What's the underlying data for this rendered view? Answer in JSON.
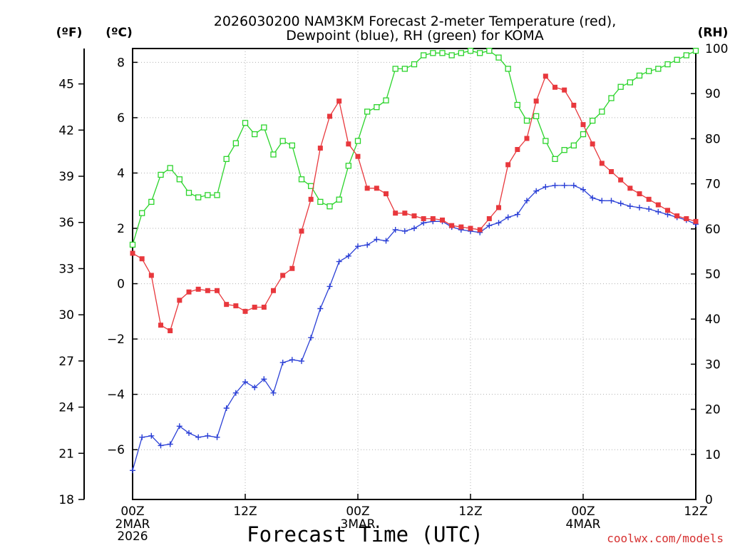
{
  "title": {
    "line1": "2026030200 NAM3KM Forecast 2-meter Temperature (red),",
    "line2": "Dewpoint (blue), RH (green) for KOMA"
  },
  "units": {
    "fahrenheit": "(ºF)",
    "celsius": "(ºC)",
    "rh": "(RH)"
  },
  "x_axis": {
    "label": "Forecast Time (UTC)",
    "ticks": [
      {
        "hour": 0,
        "label": "00Z"
      },
      {
        "hour": 12,
        "label": "12Z"
      },
      {
        "hour": 24,
        "label": "00Z"
      },
      {
        "hour": 36,
        "label": "12Z"
      },
      {
        "hour": 48,
        "label": "00Z"
      },
      {
        "hour": 60,
        "label": "12Z"
      }
    ],
    "date_labels": [
      {
        "hour": 0,
        "lines": [
          "2MAR",
          "2026"
        ]
      },
      {
        "hour": 24,
        "lines": [
          "3MAR"
        ]
      },
      {
        "hour": 48,
        "lines": [
          "4MAR"
        ]
      }
    ]
  },
  "credit": "coolwx.com/models",
  "colors": {
    "temp": "#e8383d",
    "dewpoint": "#2a3fd6",
    "rh": "#2bd42b",
    "axis": "#000000"
  },
  "chart_data": {
    "type": "line",
    "title": "2026030200 NAM3KM Forecast 2-meter Temperature (red), Dewpoint (blue), RH (green) for KOMA",
    "xlabel": "Forecast Time (UTC)",
    "x": [
      0,
      1,
      2,
      3,
      4,
      5,
      6,
      7,
      8,
      9,
      10,
      11,
      12,
      13,
      14,
      15,
      16,
      17,
      18,
      19,
      20,
      21,
      22,
      23,
      24,
      25,
      26,
      27,
      28,
      29,
      30,
      31,
      32,
      33,
      34,
      35,
      36,
      37,
      38,
      39,
      40,
      41,
      42,
      43,
      44,
      45,
      46,
      47,
      48,
      49,
      50,
      51,
      52,
      53,
      54,
      55,
      56,
      57,
      58,
      59,
      60
    ],
    "xlim": [
      0,
      60
    ],
    "y_left_celsius": {
      "ylim": [
        -7.8,
        8.5
      ],
      "ticks": [
        -6,
        -4,
        -2,
        0,
        2,
        4,
        6,
        8
      ]
    },
    "y_left_fahrenheit": {
      "ylim": [
        18,
        47.3
      ],
      "ticks": [
        18,
        21,
        24,
        27,
        30,
        33,
        36,
        39,
        42,
        45
      ]
    },
    "y_right_rh": {
      "ylim": [
        0,
        100
      ],
      "ticks": [
        0,
        10,
        20,
        30,
        40,
        50,
        60,
        70,
        80,
        90,
        100
      ]
    },
    "series": [
      {
        "name": "Temperature (C)",
        "axis": "celsius",
        "marker": "filled-square",
        "values": [
          1.1,
          0.9,
          0.3,
          -1.5,
          -1.7,
          -0.6,
          -0.3,
          -0.2,
          -0.25,
          -0.25,
          -0.75,
          -0.8,
          -1.0,
          -0.85,
          -0.85,
          -0.25,
          0.3,
          0.55,
          1.9,
          3.05,
          4.9,
          6.05,
          6.6,
          5.05,
          4.6,
          3.45,
          3.45,
          3.25,
          2.55,
          2.55,
          2.45,
          2.35,
          2.35,
          2.3,
          2.1,
          2.05,
          2.0,
          1.95,
          2.35,
          2.75,
          4.3,
          4.85,
          5.25,
          6.6,
          7.5,
          7.1,
          7.0,
          6.45,
          5.75,
          5.05,
          4.35,
          4.05,
          3.75,
          3.45,
          3.25,
          3.05,
          2.85,
          2.65,
          2.45,
          2.35,
          2.25
        ]
      },
      {
        "name": "Dewpoint (C)",
        "axis": "celsius",
        "marker": "plus",
        "values": [
          -6.75,
          -5.55,
          -5.5,
          -5.85,
          -5.8,
          -5.15,
          -5.4,
          -5.55,
          -5.5,
          -5.55,
          -4.5,
          -3.95,
          -3.55,
          -3.75,
          -3.45,
          -3.95,
          -2.85,
          -2.75,
          -2.8,
          -1.95,
          -0.9,
          -0.1,
          0.8,
          1.0,
          1.35,
          1.4,
          1.6,
          1.55,
          1.95,
          1.9,
          2.0,
          2.2,
          2.25,
          2.25,
          2.05,
          1.95,
          1.9,
          1.85,
          2.1,
          2.2,
          2.4,
          2.5,
          3.0,
          3.35,
          3.5,
          3.55,
          3.55,
          3.55,
          3.4,
          3.1,
          3.0,
          3.0,
          2.9,
          2.8,
          2.75,
          2.7,
          2.6,
          2.5,
          2.4,
          2.3,
          2.15
        ]
      },
      {
        "name": "RH (%)",
        "axis": "rh",
        "marker": "open-square",
        "values": [
          56.5,
          63.5,
          66,
          72,
          73.5,
          71,
          68,
          67,
          67.5,
          67.5,
          75.5,
          79,
          83.5,
          81,
          82.5,
          76.5,
          79.5,
          78.5,
          71,
          69.5,
          66,
          65,
          66.5,
          74,
          79.5,
          86,
          87,
          88.5,
          95.5,
          95.5,
          96.5,
          98.5,
          99,
          99,
          98.5,
          99,
          99.5,
          99,
          99.5,
          98,
          95.5,
          87.5,
          84,
          85,
          79.5,
          75.5,
          77.5,
          78.5,
          81,
          84,
          86,
          89,
          91.5,
          92.5,
          94,
          95,
          95.5,
          96.5,
          97.5,
          98.5,
          99.5
        ]
      }
    ]
  }
}
